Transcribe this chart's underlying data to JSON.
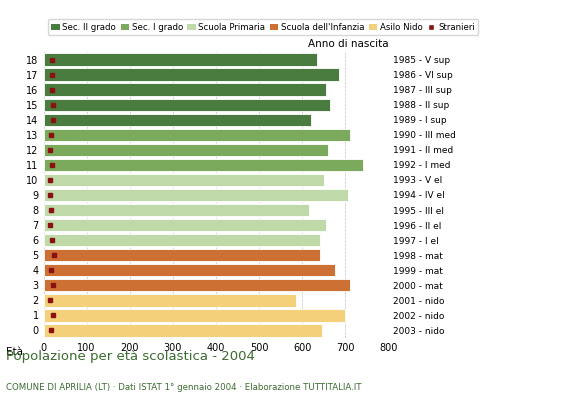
{
  "ages": [
    18,
    17,
    16,
    15,
    14,
    13,
    12,
    11,
    10,
    9,
    8,
    7,
    6,
    5,
    4,
    3,
    2,
    1,
    0
  ],
  "years": [
    "1985 - V sup",
    "1986 - VI sup",
    "1987 - III sup",
    "1988 - II sup",
    "1989 - I sup",
    "1990 - III med",
    "1991 - II med",
    "1992 - I med",
    "1993 - V el",
    "1994 - IV el",
    "1995 - III el",
    "1996 - II el",
    "1997 - I el",
    "1998 - mat",
    "1999 - mat",
    "2000 - mat",
    "2001 - nido",
    "2002 - nido",
    "2003 - nido"
  ],
  "values": [
    635,
    685,
    655,
    665,
    620,
    710,
    660,
    740,
    650,
    705,
    615,
    655,
    640,
    640,
    675,
    710,
    585,
    700,
    645
  ],
  "stranieri": [
    20,
    20,
    20,
    22,
    22,
    18,
    16,
    20,
    14,
    16,
    18,
    16,
    20,
    25,
    18,
    22,
    16,
    22,
    18
  ],
  "bar_colors": [
    "#4a7c3f",
    "#4a7c3f",
    "#4a7c3f",
    "#4a7c3f",
    "#4a7c3f",
    "#7caa5c",
    "#7caa5c",
    "#7caa5c",
    "#c0d9a8",
    "#c0d9a8",
    "#c0d9a8",
    "#c0d9a8",
    "#c0d9a8",
    "#cc7033",
    "#cc7033",
    "#cc7033",
    "#f5d07a",
    "#f5d07a",
    "#f5d07a"
  ],
  "stranieri_color": "#8b1010",
  "legend_colors": [
    "#4a7c3f",
    "#7caa5c",
    "#c0d9a8",
    "#cc7033",
    "#f5d07a",
    "#8b1010"
  ],
  "legend_labels": [
    "Sec. II grado",
    "Sec. I grado",
    "Scuola Primaria",
    "Scuola dell'Infanzia",
    "Asilo Nido",
    "Stranieri"
  ],
  "title": "Popolazione per età scolastica - 2004",
  "subtitle": "COMUNE DI APRILIA (LT) · Dati ISTAT 1° gennaio 2004 · Elaborazione TUTTITALIA.IT",
  "eta_label": "Età",
  "anno_label": "Anno di nascita",
  "xlim": [
    0,
    800
  ],
  "xticks": [
    0,
    100,
    200,
    300,
    400,
    500,
    600,
    700,
    800
  ],
  "bg": "#ffffff",
  "grid_color": "#bbbbbb",
  "title_color": "#3a6b30",
  "subtitle_color": "#3a6b30"
}
